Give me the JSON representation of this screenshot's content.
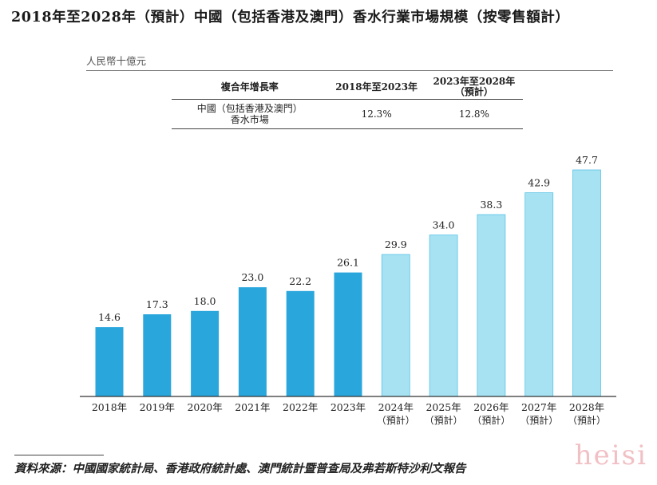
{
  "title": "2018年至2028年（預計）中國（包括香港及澳門）香水行業市場規模（按零售額計）",
  "unit": "人民幣十億元",
  "cagr_table": {
    "headers": [
      "",
      "複合年增長率",
      "2018年至2023年",
      "2023年至2028年",
      "（預計）"
    ],
    "row_label_line1": "中國（包括香港及澳門）",
    "row_label_line2": "香水市場",
    "cagr_2018_2023": "12.3%",
    "cagr_2023_2028": "12.8%"
  },
  "chart_data": {
    "type": "bar",
    "title": "2018年至2028年（預計）中國（包括香港及澳門）香水行業市場規模（按零售額計）",
    "ylabel": "人民幣十億元",
    "categories": [
      "2018年",
      "2019年",
      "2020年",
      "2021年",
      "2022年",
      "2023年",
      "2024年",
      "2025年",
      "2026年",
      "2027年",
      "2028年"
    ],
    "category_sublabels": [
      "",
      "",
      "",
      "",
      "",
      "",
      "（預計）",
      "（預計）",
      "（預計）",
      "（預計）",
      "（預計）"
    ],
    "values": [
      14.6,
      17.3,
      18.0,
      23.0,
      22.2,
      26.1,
      29.9,
      34.0,
      38.3,
      42.9,
      47.7
    ],
    "value_labels": [
      "14.6",
      "17.3",
      "18.0",
      "23.0",
      "22.2",
      "26.1",
      "29.9",
      "34.0",
      "38.3",
      "42.9",
      "47.7"
    ],
    "projected": [
      false,
      false,
      false,
      false,
      false,
      false,
      true,
      true,
      true,
      true,
      true
    ],
    "ylim": [
      0,
      48
    ],
    "grid": false,
    "colors": {
      "historical": "#29a6dc",
      "projected": "#a6e2f2",
      "projected_edge": "#5cc3e8",
      "axis": "#333333"
    }
  },
  "source": "資料來源：中國國家統計局、香港政府統計處、澳門統計暨普查局及弗若斯特沙利文報告",
  "watermark": "heisi"
}
